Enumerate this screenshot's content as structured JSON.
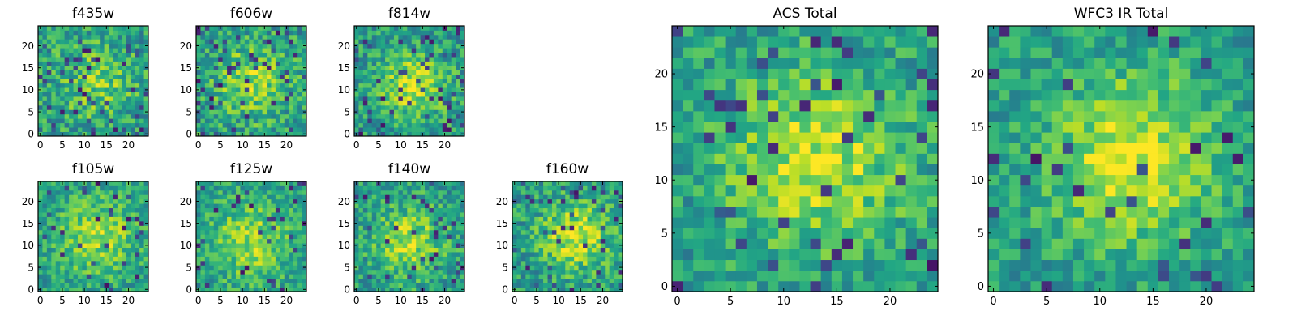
{
  "figure": {
    "background": "#ffffff",
    "colormap": "viridis"
  },
  "chart_data": [
    {
      "type": "heatmap",
      "title": "f435w",
      "grid_size": 25,
      "xlim": [
        0,
        24
      ],
      "ylim": [
        0,
        24
      ],
      "xticks": [
        0,
        5,
        10,
        15,
        20
      ],
      "yticks": [
        0,
        5,
        10,
        15,
        20
      ],
      "seed": 435,
      "blob": {
        "cx": 13,
        "cy": 12,
        "sigma": 6.5,
        "amplitude": 0.22
      },
      "noise": 0.22,
      "dark_pixel_fraction": 0.07
    },
    {
      "type": "heatmap",
      "title": "f606w",
      "grid_size": 25,
      "xlim": [
        0,
        24
      ],
      "ylim": [
        0,
        24
      ],
      "xticks": [
        0,
        5,
        10,
        15,
        20
      ],
      "yticks": [
        0,
        5,
        10,
        15,
        20
      ],
      "seed": 606,
      "blob": {
        "cx": 12,
        "cy": 12,
        "sigma": 6,
        "amplitude": 0.28
      },
      "noise": 0.22,
      "dark_pixel_fraction": 0.08
    },
    {
      "type": "heatmap",
      "title": "f814w",
      "grid_size": 25,
      "xlim": [
        0,
        24
      ],
      "ylim": [
        0,
        24
      ],
      "xticks": [
        0,
        5,
        10,
        15,
        20
      ],
      "yticks": [
        0,
        5,
        10,
        15,
        20
      ],
      "seed": 814,
      "blob": {
        "cx": 13,
        "cy": 11,
        "sigma": 5,
        "amplitude": 0.38
      },
      "noise": 0.2,
      "dark_pixel_fraction": 0.07
    },
    {
      "type": "heatmap",
      "title": "f105w",
      "grid_size": 25,
      "xlim": [
        0,
        24
      ],
      "ylim": [
        0,
        24
      ],
      "xticks": [
        0,
        5,
        10,
        15,
        20
      ],
      "yticks": [
        0,
        5,
        10,
        15,
        20
      ],
      "seed": 105,
      "blob": {
        "cx": 13,
        "cy": 12,
        "sigma": 6.5,
        "amplitude": 0.3
      },
      "noise": 0.18,
      "dark_pixel_fraction": 0.05
    },
    {
      "type": "heatmap",
      "title": "f125w",
      "grid_size": 25,
      "xlim": [
        0,
        24
      ],
      "ylim": [
        0,
        24
      ],
      "xticks": [
        0,
        5,
        10,
        15,
        20
      ],
      "yticks": [
        0,
        5,
        10,
        15,
        20
      ],
      "seed": 125,
      "blob": {
        "cx": 12,
        "cy": 11,
        "sigma": 6.5,
        "amplitude": 0.3
      },
      "noise": 0.18,
      "dark_pixel_fraction": 0.05
    },
    {
      "type": "heatmap",
      "title": "f140w",
      "grid_size": 25,
      "xlim": [
        0,
        24
      ],
      "ylim": [
        0,
        24
      ],
      "xticks": [
        0,
        5,
        10,
        15,
        20
      ],
      "yticks": [
        0,
        5,
        10,
        15,
        20
      ],
      "seed": 140,
      "blob": {
        "cx": 12,
        "cy": 11,
        "sigma": 5.5,
        "amplitude": 0.32
      },
      "noise": 0.2,
      "dark_pixel_fraction": 0.06
    },
    {
      "type": "heatmap",
      "title": "f160w",
      "grid_size": 25,
      "xlim": [
        0,
        24
      ],
      "ylim": [
        0,
        24
      ],
      "xticks": [
        0,
        5,
        10,
        15,
        20
      ],
      "yticks": [
        0,
        5,
        10,
        15,
        20
      ],
      "seed": 160,
      "blob": {
        "cx": 14,
        "cy": 12,
        "sigma": 5.5,
        "amplitude": 0.36
      },
      "noise": 0.2,
      "dark_pixel_fraction": 0.06
    },
    {
      "type": "heatmap",
      "title": "ACS Total",
      "grid_size": 25,
      "xlim": [
        0,
        24
      ],
      "ylim": [
        0,
        24
      ],
      "xticks": [
        0,
        5,
        10,
        15,
        20
      ],
      "yticks": [
        0,
        5,
        10,
        15,
        20
      ],
      "seed": 777,
      "blob": {
        "cx": 13,
        "cy": 12,
        "sigma": 6,
        "amplitude": 0.36
      },
      "noise": 0.18,
      "dark_pixel_fraction": 0.06
    },
    {
      "type": "heatmap",
      "title": "WFC3 IR Total",
      "grid_size": 25,
      "xlim": [
        0,
        24
      ],
      "ylim": [
        0,
        24
      ],
      "xticks": [
        0,
        5,
        10,
        15,
        20
      ],
      "yticks": [
        0,
        5,
        10,
        15,
        20
      ],
      "seed": 999,
      "blob": {
        "cx": 13,
        "cy": 12,
        "sigma": 5.5,
        "amplitude": 0.4
      },
      "noise": 0.16,
      "dark_pixel_fraction": 0.05
    }
  ]
}
